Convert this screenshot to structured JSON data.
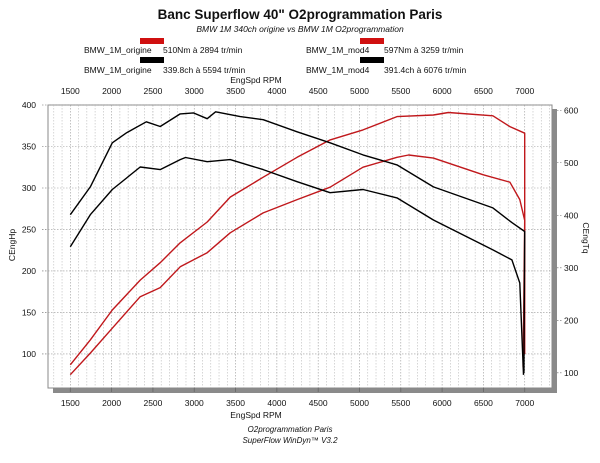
{
  "chart_data": {
    "type": "line",
    "title": "Banc Superflow 40\" O2programmation Paris",
    "subtitle": "BMW 1M 340ch origine vs BMW 1M O2programmation",
    "xlabel": "EngSpd RPM",
    "ylabel_left": "CEngHp",
    "ylabel_right": "CEngTq",
    "xlim": [
      1230,
      7330
    ],
    "ylim_left": [
      59,
      400
    ],
    "ylim_right": [
      71,
      610
    ],
    "x_ticks": [
      1500,
      2000,
      2500,
      3000,
      3500,
      4000,
      4500,
      5000,
      5500,
      6000,
      6500,
      7000
    ],
    "y_ticks_left": [
      100,
      150,
      200,
      250,
      300,
      350,
      400
    ],
    "y_ticks_right": [
      100,
      200,
      300,
      400,
      500,
      600
    ],
    "grid": true,
    "legend": [
      {
        "name": "BMW_1M_origine",
        "value": "510Nm à 2894 tr/min",
        "color": "#d01010"
      },
      {
        "name": "BMW_1M_mod4",
        "value": "597Nm à 3259 tr/min",
        "color": "#d01010"
      },
      {
        "name": "BMW_1M_origine",
        "value": "339.8ch à 5594 tr/min",
        "color": "#000000"
      },
      {
        "name": "BMW_1M_mod4",
        "value": "391.4ch à 6076 tr/min",
        "color": "#000000"
      }
    ],
    "series": [
      {
        "name": "BMW_1M_mod4 power",
        "axis": "left",
        "color": "#c0181c",
        "x": [
          1500,
          1742,
          2008,
          2346,
          2588,
          2830,
          3157,
          3435,
          3834,
          4245,
          4644,
          5043,
          5454,
          5895,
          6076,
          6615,
          6820,
          7000,
          7000
        ],
        "y": [
          87,
          117,
          153,
          189,
          210,
          234,
          259,
          289,
          313,
          337,
          358,
          370,
          386,
          388,
          391,
          387,
          374,
          366,
          100
        ]
      },
      {
        "name": "BMW_1M_origine power",
        "axis": "left",
        "color": "#c0181c",
        "x": [
          1500,
          1742,
          2008,
          2346,
          2588,
          2830,
          3157,
          3435,
          3834,
          4245,
          4644,
          5043,
          5454,
          5594,
          5895,
          6494,
          6820,
          6940,
          7000,
          6980
        ],
        "y": [
          75,
          101,
          131,
          169,
          180,
          205,
          222,
          246,
          270,
          286,
          301,
          325,
          337,
          339.8,
          336,
          316,
          307,
          286,
          261,
          84
        ]
      },
      {
        "name": "BMW_1M_mod4 torque",
        "axis": "right",
        "color": "#000000",
        "x": [
          1500,
          1742,
          2008,
          2180,
          2420,
          2588,
          2830,
          2990,
          3157,
          3259,
          3556,
          3834,
          4245,
          4644,
          5043,
          5454,
          5895,
          6615,
          6845,
          7000,
          6990
        ],
        "y": [
          401,
          454,
          538,
          557,
          578,
          569,
          593,
          595,
          584,
          597,
          588,
          582,
          559,
          538,
          515,
          496,
          454,
          414,
          386,
          369,
          100
        ]
      },
      {
        "name": "BMW_1M_origine torque",
        "axis": "right",
        "color": "#000000",
        "x": [
          1500,
          1742,
          2008,
          2346,
          2588,
          2830,
          2894,
          3157,
          3435,
          3834,
          4245,
          4644,
          5043,
          5454,
          5895,
          6615,
          6845,
          6940,
          6985
        ],
        "y": [
          340,
          401,
          449,
          492,
          487,
          506,
          510,
          502,
          506,
          487,
          464,
          443,
          449,
          433,
          391,
          334,
          315,
          271,
          96
        ]
      }
    ],
    "footer": [
      "O2programmation Paris",
      "SuperFlow WinDyn™ V3.2"
    ]
  }
}
